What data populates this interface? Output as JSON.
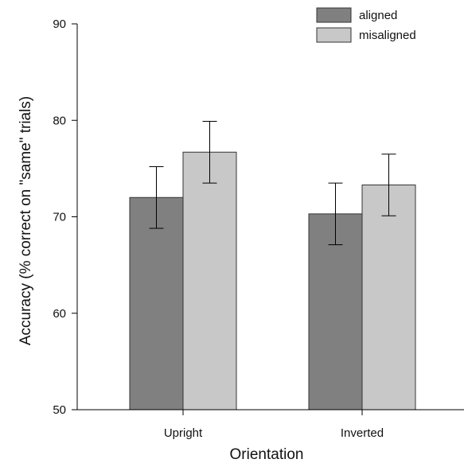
{
  "chart_data": {
    "type": "bar",
    "title": "",
    "xlabel": "Orientation",
    "ylabel": "Accuracy (% correct on \"same\" trials)",
    "categories": [
      "Upright",
      "Inverted"
    ],
    "ylim": [
      50,
      90
    ],
    "yticks": [
      50,
      60,
      70,
      80,
      90
    ],
    "grid": false,
    "legend_position": "top-right",
    "series": [
      {
        "name": "aligned",
        "color": "#808080",
        "values": [
          72.0,
          70.3
        ],
        "error": [
          3.2,
          3.2
        ]
      },
      {
        "name": "misaligned",
        "color": "#c8c8c8",
        "values": [
          76.7,
          73.3
        ],
        "error": [
          3.2,
          3.2
        ]
      }
    ]
  }
}
